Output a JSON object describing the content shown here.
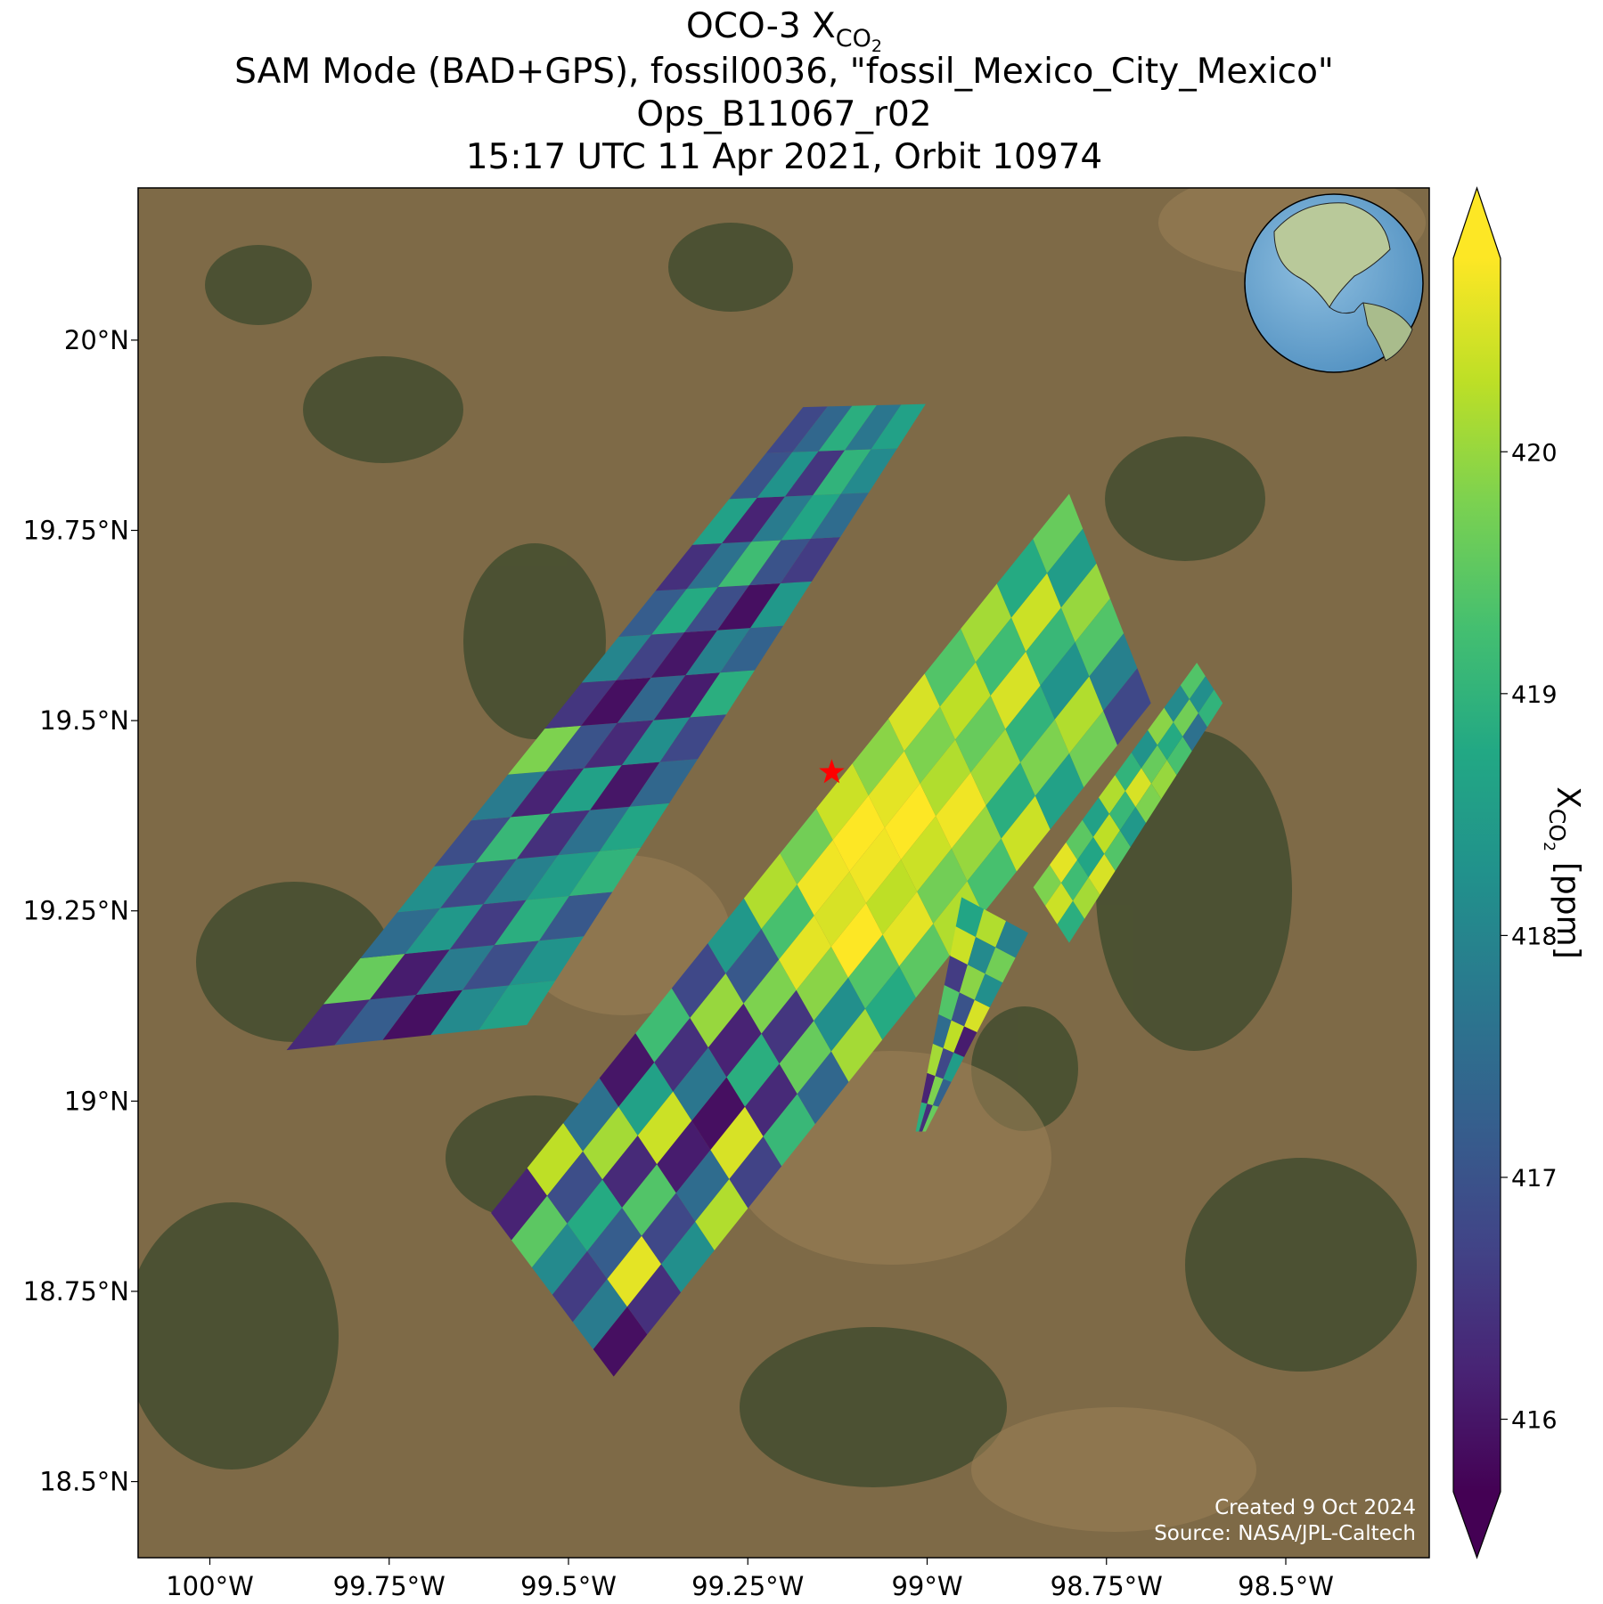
{
  "chart_data": {
    "type": "map",
    "title": {
      "text": "OCO-3 X",
      "sub": "CO",
      "subsub": "2"
    },
    "subtitle_lines": [
      "SAM Mode (BAD+GPS), fossil0036, \"fossil_Mexico_City_Mexico\"",
      "Ops_B11067_r02",
      "15:17 UTC 11 Apr 2021, Orbit 10974"
    ],
    "xlim": [
      -100.1,
      -98.3
    ],
    "ylim": [
      18.4,
      20.2
    ],
    "xticks": [
      {
        "value": -100,
        "label": "100°W"
      },
      {
        "value": -99.75,
        "label": "99.75°W"
      },
      {
        "value": -99.5,
        "label": "99.5°W"
      },
      {
        "value": -99.25,
        "label": "99.25°W"
      },
      {
        "value": -99,
        "label": "99°W"
      },
      {
        "value": -98.75,
        "label": "98.75°W"
      },
      {
        "value": -98.5,
        "label": "98.5°W"
      }
    ],
    "yticks": [
      {
        "value": 18.5,
        "label": "18.5°N"
      },
      {
        "value": 18.75,
        "label": "18.75°N"
      },
      {
        "value": 19,
        "label": "19°N"
      },
      {
        "value": 19.25,
        "label": "19.25°N"
      },
      {
        "value": 19.5,
        "label": "19.5°N"
      },
      {
        "value": 19.75,
        "label": "19.75°N"
      },
      {
        "value": 20,
        "label": "20°N"
      }
    ],
    "grid": true,
    "colormap": "viridis",
    "colorbar": {
      "label": {
        "text": "X",
        "sub": "CO",
        "subsub": "2",
        "unit": "[ppm]"
      },
      "clim": [
        415.7,
        420.8
      ],
      "ticks": [
        416,
        417,
        418,
        419,
        420
      ]
    },
    "target": {
      "lon": -99.133,
      "lat": 19.432,
      "color": "#ff0000"
    },
    "swaths": [
      {
        "corners": [
          [
            -99.893,
            19.067
          ],
          [
            -99.173,
            19.912
          ],
          [
            -99.002,
            19.916
          ],
          [
            -99.558,
            19.1
          ]
        ],
        "values": [
          [
            416.3,
            417.2,
            415.9,
            418.1,
            418.6
          ],
          [
            419.6,
            416.1,
            417.8,
            416.9,
            418.3
          ],
          [
            417.5,
            418.4,
            416.6,
            418.9,
            417.1
          ],
          [
            418.2,
            416.8,
            417.9,
            418.5,
            419.0
          ],
          [
            416.9,
            419.1,
            416.4,
            417.6,
            418.7
          ],
          [
            417.8,
            416.2,
            418.6,
            416.0,
            417.4
          ],
          [
            419.8,
            417.0,
            416.3,
            418.2,
            416.8
          ],
          [
            416.5,
            415.9,
            417.4,
            416.1,
            418.9
          ],
          [
            418.0,
            416.7,
            416.0,
            417.9,
            417.3
          ],
          [
            417.2,
            418.8,
            416.9,
            415.9,
            418.4
          ],
          [
            416.4,
            417.6,
            419.2,
            417.0,
            416.6
          ],
          [
            418.6,
            416.2,
            417.8,
            418.7,
            417.5
          ],
          [
            417.0,
            418.3,
            416.5,
            419.0,
            418.1
          ],
          [
            416.8,
            417.4,
            418.9,
            417.7,
            418.6
          ]
        ]
      },
      {
        "corners": [
          [
            -99.608,
            18.853
          ],
          [
            -98.802,
            19.798
          ],
          [
            -98.688,
            19.523
          ],
          [
            -99.437,
            18.638
          ]
        ],
        "values": [
          [
            416.2,
            419.5,
            418.1,
            416.6,
            417.8,
            415.9
          ],
          [
            420.3,
            416.9,
            418.8,
            417.2,
            420.6,
            416.4
          ],
          [
            417.6,
            420.1,
            416.3,
            419.4,
            416.8,
            418.2
          ],
          [
            416.0,
            418.6,
            420.4,
            416.1,
            417.5,
            420.2
          ],
          [
            419.2,
            416.4,
            417.7,
            415.9,
            420.5,
            416.7
          ],
          [
            416.8,
            420.0,
            416.2,
            418.9,
            416.3,
            419.1
          ],
          [
            418.4,
            417.1,
            419.8,
            416.5,
            419.6,
            417.4
          ],
          [
            420.2,
            419.3,
            420.6,
            419.9,
            418.2,
            420.1
          ],
          [
            419.7,
            420.7,
            420.5,
            420.8,
            419.4,
            418.8
          ],
          [
            420.4,
            420.8,
            420.7,
            420.3,
            420.6,
            419.5
          ],
          [
            419.9,
            420.6,
            420.8,
            420.4,
            419.7,
            420.2
          ],
          [
            420.5,
            419.8,
            420.2,
            420.7,
            420.0,
            419.3
          ],
          [
            419.4,
            420.3,
            419.6,
            420.1,
            418.9,
            420.4
          ],
          [
            420.1,
            419.2,
            420.5,
            419.0,
            419.8,
            418.6
          ],
          [
            418.8,
            420.4,
            419.1,
            418.3,
            420.2,
            419.7
          ],
          [
            419.6,
            418.5,
            420.0,
            419.4,
            417.9,
            416.8
          ]
        ]
      },
      {
        "corners": [
          [
            -98.852,
            19.281
          ],
          [
            -98.624,
            19.576
          ],
          [
            -98.588,
            19.523
          ],
          [
            -98.802,
            19.208
          ]
        ],
        "values": [
          [
            419.8,
            420.4,
            418.9
          ],
          [
            420.6,
            419.2,
            420.1
          ],
          [
            419.5,
            418.7,
            420.5
          ],
          [
            418.6,
            420.3,
            419.4
          ],
          [
            420.2,
            419.1,
            418.4
          ],
          [
            419.0,
            420.5,
            419.8
          ],
          [
            418.3,
            419.6,
            420.0
          ],
          [
            419.9,
            418.8,
            419.3
          ],
          [
            418.1,
            419.7,
            417.6
          ],
          [
            419.4,
            418.2,
            419.0
          ]
        ]
      },
      {
        "corners": [
          [
            -99.016,
            18.96
          ],
          [
            -98.952,
            19.268
          ],
          [
            -98.859,
            19.221
          ],
          [
            -99.002,
            18.96
          ]
        ],
        "values": [
          [
            418.9,
            416.4,
            419.6
          ],
          [
            416.2,
            419.8,
            417.3
          ],
          [
            420.1,
            416.8,
            418.5
          ],
          [
            417.5,
            420.3,
            416.1
          ],
          [
            419.4,
            417.0,
            420.5
          ],
          [
            416.6,
            419.9,
            418.2
          ],
          [
            420.4,
            418.1,
            419.7
          ],
          [
            418.7,
            420.2,
            417.9
          ]
        ]
      }
    ],
    "footer": [
      "Created 9 Oct 2024",
      "Source: NASA/JPL-Caltech"
    ]
  }
}
